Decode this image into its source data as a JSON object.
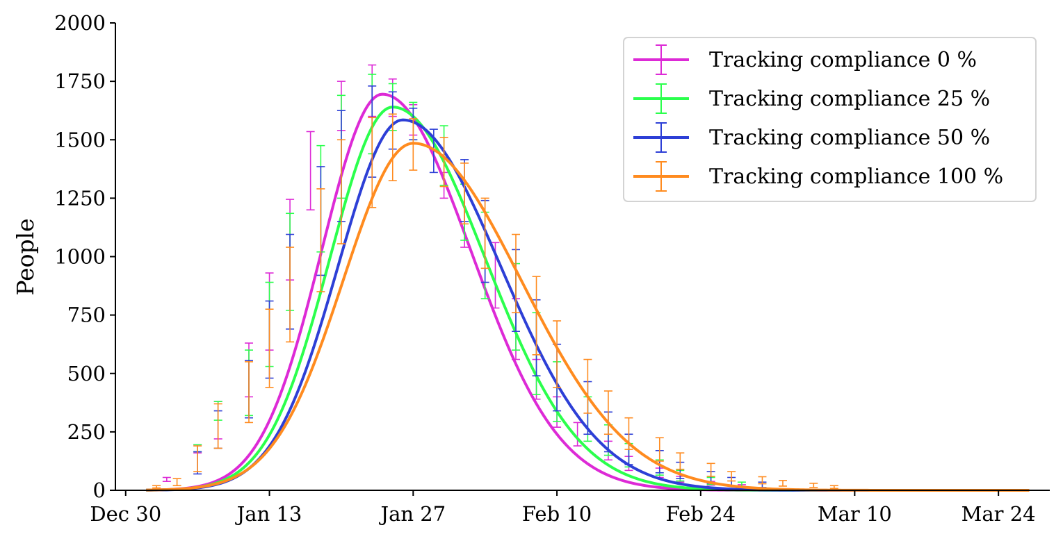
{
  "chart_data": {
    "type": "line",
    "title": "",
    "xlabel": "",
    "ylabel": "People",
    "ylim": [
      0,
      2000
    ],
    "xlim": [
      "2019-12-29",
      "2020-03-29"
    ],
    "yticks": [
      0,
      250,
      500,
      750,
      1000,
      1250,
      1500,
      1750,
      2000
    ],
    "xticks": [
      {
        "date": "2019-12-30",
        "label": "Dec 30"
      },
      {
        "date": "2020-01-13",
        "label": "Jan 13"
      },
      {
        "date": "2020-01-27",
        "label": "Jan 27"
      },
      {
        "date": "2020-02-10",
        "label": "Feb 10"
      },
      {
        "date": "2020-02-24",
        "label": "Feb 24"
      },
      {
        "date": "2020-03-10",
        "label": "Mar 10"
      },
      {
        "date": "2020-03-24",
        "label": "Mar 24"
      }
    ],
    "legend_position": "top-right",
    "grid": false,
    "series": [
      {
        "name": "Tracking compliance 0 %",
        "color": "#dd2ad6",
        "peak_date": "2020-01-24",
        "peak_value": 1695,
        "sigma_left_days": 5.9,
        "sigma_right_days": 8.6,
        "errorbars": [
          {
            "x": "2020-01-03",
            "lo": 38,
            "hi": 55
          },
          {
            "x": "2020-01-06",
            "lo": 160,
            "hi": 195
          },
          {
            "x": "2020-01-08",
            "lo": 220,
            "hi": 380
          },
          {
            "x": "2020-01-11",
            "lo": 400,
            "hi": 630
          },
          {
            "x": "2020-01-13",
            "lo": 600,
            "hi": 930
          },
          {
            "x": "2020-01-15",
            "lo": 900,
            "hi": 1245
          },
          {
            "x": "2020-01-17",
            "lo": 1200,
            "hi": 1535
          },
          {
            "x": "2020-01-20",
            "lo": 1540,
            "hi": 1750
          },
          {
            "x": "2020-01-23",
            "lo": 1600,
            "hi": 1820
          },
          {
            "x": "2020-01-25",
            "lo": 1600,
            "hi": 1760
          },
          {
            "x": "2020-01-27",
            "lo": 1520,
            "hi": 1650
          },
          {
            "x": "2020-01-30",
            "lo": 1250,
            "hi": 1360
          },
          {
            "x": "2020-02-01",
            "lo": 1040,
            "hi": 1310
          },
          {
            "x": "2020-02-04",
            "lo": 780,
            "hi": 1060
          },
          {
            "x": "2020-02-06",
            "lo": 560,
            "hi": 820
          },
          {
            "x": "2020-02-08",
            "lo": 390,
            "hi": 560
          },
          {
            "x": "2020-02-10",
            "lo": 270,
            "hi": 400
          },
          {
            "x": "2020-02-12",
            "lo": 190,
            "hi": 290
          },
          {
            "x": "2020-02-15",
            "lo": 130,
            "hi": 210
          },
          {
            "x": "2020-02-17",
            "lo": 85,
            "hi": 145
          },
          {
            "x": "2020-02-20",
            "lo": 55,
            "hi": 95
          },
          {
            "x": "2020-02-22",
            "lo": 35,
            "hi": 60
          },
          {
            "x": "2020-02-25",
            "lo": 22,
            "hi": 38
          },
          {
            "x": "2020-02-28",
            "lo": 12,
            "hi": 24
          }
        ]
      },
      {
        "name": "Tracking compliance 25 %",
        "color": "#2bff4d",
        "peak_date": "2020-01-25",
        "peak_value": 1640,
        "sigma_left_days": 6.1,
        "sigma_right_days": 9.0,
        "errorbars": [
          {
            "x": "2020-01-06",
            "lo": 165,
            "hi": 195
          },
          {
            "x": "2020-01-08",
            "lo": 300,
            "hi": 380
          },
          {
            "x": "2020-01-11",
            "lo": 320,
            "hi": 600
          },
          {
            "x": "2020-01-13",
            "lo": 530,
            "hi": 890
          },
          {
            "x": "2020-01-15",
            "lo": 770,
            "hi": 1185
          },
          {
            "x": "2020-01-18",
            "lo": 1020,
            "hi": 1475
          },
          {
            "x": "2020-01-20",
            "lo": 1250,
            "hi": 1690
          },
          {
            "x": "2020-01-23",
            "lo": 1440,
            "hi": 1780
          },
          {
            "x": "2020-01-25",
            "lo": 1540,
            "hi": 1740
          },
          {
            "x": "2020-01-27",
            "lo": 1500,
            "hi": 1660
          },
          {
            "x": "2020-01-30",
            "lo": 1305,
            "hi": 1560
          },
          {
            "x": "2020-02-01",
            "lo": 1070,
            "hi": 1310
          },
          {
            "x": "2020-02-03",
            "lo": 820,
            "hi": 1190
          },
          {
            "x": "2020-02-06",
            "lo": 600,
            "hi": 970
          },
          {
            "x": "2020-02-08",
            "lo": 410,
            "hi": 760
          },
          {
            "x": "2020-02-10",
            "lo": 295,
            "hi": 550
          },
          {
            "x": "2020-02-13",
            "lo": 210,
            "hi": 400
          },
          {
            "x": "2020-02-15",
            "lo": 150,
            "hi": 280
          },
          {
            "x": "2020-02-17",
            "lo": 100,
            "hi": 200
          },
          {
            "x": "2020-02-20",
            "lo": 65,
            "hi": 130
          },
          {
            "x": "2020-02-22",
            "lo": 40,
            "hi": 85
          },
          {
            "x": "2020-02-25",
            "lo": 25,
            "hi": 55
          },
          {
            "x": "2020-02-28",
            "lo": 15,
            "hi": 35
          }
        ]
      },
      {
        "name": "Tracking compliance 50 %",
        "color": "#2d3fd6",
        "peak_date": "2020-01-26",
        "peak_value": 1585,
        "sigma_left_days": 6.3,
        "sigma_right_days": 9.5,
        "errorbars": [
          {
            "x": "2020-01-06",
            "lo": 70,
            "hi": 165
          },
          {
            "x": "2020-01-08",
            "lo": 180,
            "hi": 340
          },
          {
            "x": "2020-01-11",
            "lo": 310,
            "hi": 555
          },
          {
            "x": "2020-01-13",
            "lo": 480,
            "hi": 810
          },
          {
            "x": "2020-01-15",
            "lo": 690,
            "hi": 1095
          },
          {
            "x": "2020-01-18",
            "lo": 920,
            "hi": 1385
          },
          {
            "x": "2020-01-20",
            "lo": 1150,
            "hi": 1625
          },
          {
            "x": "2020-01-23",
            "lo": 1340,
            "hi": 1730
          },
          {
            "x": "2020-01-25",
            "lo": 1460,
            "hi": 1705
          },
          {
            "x": "2020-01-27",
            "lo": 1500,
            "hi": 1635
          },
          {
            "x": "2020-01-29",
            "lo": 1360,
            "hi": 1545
          },
          {
            "x": "2020-02-01",
            "lo": 1150,
            "hi": 1415
          },
          {
            "x": "2020-02-03",
            "lo": 890,
            "hi": 1240
          },
          {
            "x": "2020-02-06",
            "lo": 680,
            "hi": 1030
          },
          {
            "x": "2020-02-08",
            "lo": 490,
            "hi": 815
          },
          {
            "x": "2020-02-10",
            "lo": 340,
            "hi": 625
          },
          {
            "x": "2020-02-13",
            "lo": 240,
            "hi": 465
          },
          {
            "x": "2020-02-15",
            "lo": 165,
            "hi": 335
          },
          {
            "x": "2020-02-17",
            "lo": 110,
            "hi": 240
          },
          {
            "x": "2020-02-20",
            "lo": 75,
            "hi": 170
          },
          {
            "x": "2020-02-22",
            "lo": 50,
            "hi": 120
          },
          {
            "x": "2020-02-25",
            "lo": 30,
            "hi": 80
          },
          {
            "x": "2020-02-27",
            "lo": 20,
            "hi": 55
          },
          {
            "x": "2020-03-01",
            "lo": 12,
            "hi": 35
          }
        ]
      },
      {
        "name": "Tracking compliance 100 %",
        "color": "#ff8b1f",
        "peak_date": "2020-01-27",
        "peak_value": 1485,
        "sigma_left_days": 6.8,
        "sigma_right_days": 10.5,
        "errorbars": [
          {
            "x": "2020-01-02",
            "lo": 10,
            "hi": 20
          },
          {
            "x": "2020-01-04",
            "lo": 20,
            "hi": 50
          },
          {
            "x": "2020-01-06",
            "lo": 80,
            "hi": 190
          },
          {
            "x": "2020-01-08",
            "lo": 180,
            "hi": 370
          },
          {
            "x": "2020-01-11",
            "lo": 290,
            "hi": 550
          },
          {
            "x": "2020-01-13",
            "lo": 440,
            "hi": 775
          },
          {
            "x": "2020-01-15",
            "lo": 635,
            "hi": 1040
          },
          {
            "x": "2020-01-18",
            "lo": 850,
            "hi": 1290
          },
          {
            "x": "2020-01-20",
            "lo": 1055,
            "hi": 1500
          },
          {
            "x": "2020-01-23",
            "lo": 1210,
            "hi": 1595
          },
          {
            "x": "2020-01-25",
            "lo": 1325,
            "hi": 1610
          },
          {
            "x": "2020-01-27",
            "lo": 1370,
            "hi": 1590
          },
          {
            "x": "2020-01-30",
            "lo": 1300,
            "hi": 1510
          },
          {
            "x": "2020-02-01",
            "lo": 1140,
            "hi": 1400
          },
          {
            "x": "2020-02-03",
            "lo": 950,
            "hi": 1250
          },
          {
            "x": "2020-02-06",
            "lo": 760,
            "hi": 1095
          },
          {
            "x": "2020-02-08",
            "lo": 580,
            "hi": 915
          },
          {
            "x": "2020-02-10",
            "lo": 440,
            "hi": 725
          },
          {
            "x": "2020-02-13",
            "lo": 330,
            "hi": 560
          },
          {
            "x": "2020-02-15",
            "lo": 240,
            "hi": 425
          },
          {
            "x": "2020-02-17",
            "lo": 175,
            "hi": 310
          },
          {
            "x": "2020-02-20",
            "lo": 125,
            "hi": 225
          },
          {
            "x": "2020-02-22",
            "lo": 90,
            "hi": 160
          },
          {
            "x": "2020-02-25",
            "lo": 60,
            "hi": 115
          },
          {
            "x": "2020-02-27",
            "lo": 40,
            "hi": 80
          },
          {
            "x": "2020-03-01",
            "lo": 28,
            "hi": 58
          },
          {
            "x": "2020-03-03",
            "lo": 18,
            "hi": 42
          },
          {
            "x": "2020-03-06",
            "lo": 12,
            "hi": 30
          },
          {
            "x": "2020-03-08",
            "lo": 8,
            "hi": 20
          }
        ]
      }
    ]
  }
}
